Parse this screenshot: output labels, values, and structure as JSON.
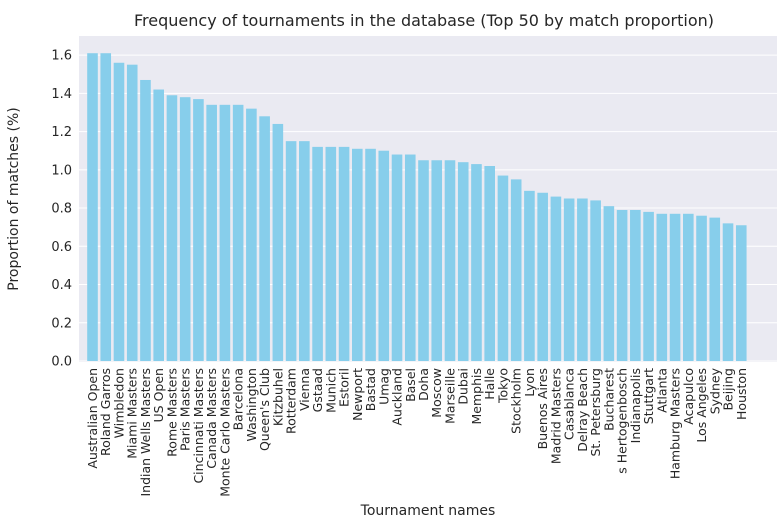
{
  "colors": {
    "plot_bg": "#EAEAF2",
    "grid": "#FFFFFF",
    "bar": "#87CEEB",
    "text": "#262626"
  },
  "chart_data": {
    "type": "bar",
    "title": "Frequency of tournaments in the database (Top 50 by match proportion)",
    "xlabel": "Tournament names",
    "ylabel": "Proportion of matches (%)",
    "ylim": [
      0,
      1.7
    ],
    "yticks": [
      "0.0",
      "0.2",
      "0.4",
      "0.6",
      "0.8",
      "1.0",
      "1.2",
      "1.4",
      "1.6"
    ],
    "grid": true,
    "categories": [
      "Australian Open",
      "Roland Garros",
      "Wimbledon",
      "Miami Masters",
      "Indian Wells Masters",
      "US Open",
      "Rome Masters",
      "Paris Masters",
      "Cincinnati Masters",
      "Canada Masters",
      "Monte Carlo Masters",
      "Barcelona",
      "Washington",
      "Queen's Club",
      "Kitzbuhel",
      "Rotterdam",
      "Vienna",
      "Gstaad",
      "Munich",
      "Estoril",
      "Newport",
      "Bastad",
      "Umag",
      "Auckland",
      "Basel",
      "Doha",
      "Moscow",
      "Marseille",
      "Dubai",
      "Memphis",
      "Halle",
      "Tokyo",
      "Stockholm",
      "Lyon",
      "Buenos Aires",
      "Madrid Masters",
      "Casablanca",
      "Delray Beach",
      "St. Petersburg",
      "Bucharest",
      "s Hertogenbosch",
      "Indianapolis",
      "Stuttgart",
      "Atlanta",
      "Hamburg Masters",
      "Acapulco",
      "Los Angeles",
      "Sydney",
      "Beijing",
      "Houston"
    ],
    "values": [
      1.61,
      1.61,
      1.56,
      1.55,
      1.47,
      1.42,
      1.39,
      1.38,
      1.37,
      1.34,
      1.34,
      1.34,
      1.32,
      1.28,
      1.24,
      1.15,
      1.15,
      1.12,
      1.12,
      1.12,
      1.11,
      1.11,
      1.1,
      1.08,
      1.08,
      1.05,
      1.05,
      1.05,
      1.04,
      1.03,
      1.02,
      0.97,
      0.95,
      0.89,
      0.88,
      0.86,
      0.85,
      0.85,
      0.84,
      0.81,
      0.79,
      0.79,
      0.78,
      0.77,
      0.77,
      0.77,
      0.76,
      0.75,
      0.72,
      0.71
    ]
  }
}
